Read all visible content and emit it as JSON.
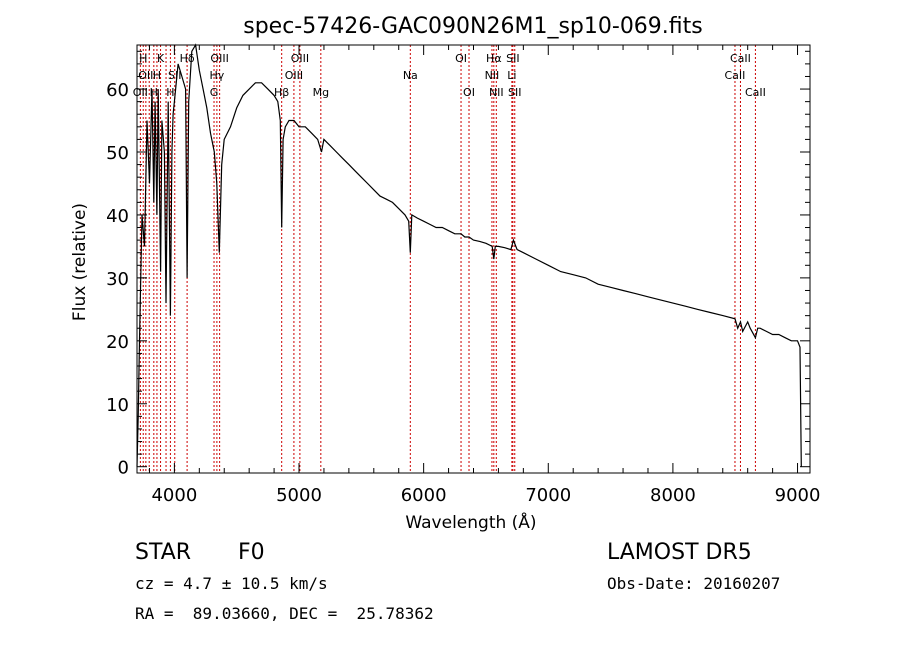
{
  "chart_data": {
    "type": "line",
    "title": "spec-57426-GAC090N26M1_sp10-069.fits",
    "xlabel": "Wavelength (Å)",
    "ylabel": "Flux (relative)",
    "xlim": [
      3700,
      9100
    ],
    "ylim": [
      -1,
      67
    ],
    "xticks": [
      4000,
      5000,
      6000,
      7000,
      8000,
      9000
    ],
    "yticks": [
      0,
      10,
      20,
      30,
      40,
      50,
      60
    ],
    "grid": false,
    "line_color": "#000000",
    "marker_color": "#cc0000",
    "series": [
      {
        "x": [
          3700,
          3710,
          3720,
          3740,
          3760,
          3780,
          3800,
          3820,
          3835,
          3845,
          3860,
          3870,
          3889,
          3900,
          3920,
          3933,
          3950,
          3968,
          3980,
          3990,
          4000,
          4030,
          4060,
          4090,
          4102,
          4115,
          4140,
          4170,
          4200,
          4230,
          4260,
          4290,
          4320,
          4340,
          4360,
          4380,
          4400,
          4450,
          4500,
          4550,
          4600,
          4650,
          4700,
          4750,
          4800,
          4830,
          4850,
          4861,
          4872,
          4890,
          4920,
          4960,
          5000,
          5050,
          5100,
          5150,
          5180,
          5200,
          5250,
          5300,
          5350,
          5400,
          5450,
          5500,
          5550,
          5600,
          5650,
          5700,
          5750,
          5800,
          5850,
          5880,
          5893,
          5905,
          5950,
          6000,
          6050,
          6100,
          6150,
          6200,
          6250,
          6300,
          6330,
          6364,
          6400,
          6450,
          6500,
          6550,
          6563,
          6575,
          6600,
          6650,
          6700,
          6720,
          6750,
          6800,
          6900,
          7000,
          7100,
          7200,
          7300,
          7400,
          7500,
          7600,
          7700,
          7800,
          7900,
          8000,
          8100,
          8200,
          8300,
          8400,
          8498,
          8520,
          8542,
          8560,
          8600,
          8620,
          8662,
          8680,
          8700,
          8750,
          8800,
          8850,
          8900,
          8950,
          9000,
          9020,
          9030
        ],
        "y": [
          0,
          8,
          20,
          40,
          35,
          55,
          45,
          60,
          42,
          58,
          40,
          60,
          31,
          55,
          50,
          26,
          58,
          24,
          50,
          56,
          58,
          64,
          62,
          60,
          30,
          58,
          66,
          67,
          63,
          60,
          57,
          53,
          50,
          45,
          34,
          48,
          52,
          54,
          57,
          59,
          60,
          61,
          61,
          60,
          59,
          58,
          55,
          38,
          52,
          54,
          55,
          55,
          54,
          54,
          53,
          52,
          50,
          52,
          51,
          50,
          49,
          48,
          47,
          46,
          45,
          44,
          43,
          42.5,
          42,
          41,
          40,
          39,
          34,
          40,
          39.5,
          39,
          38.5,
          38,
          38,
          37.5,
          37,
          37,
          36.5,
          36.5,
          36,
          35.8,
          35.5,
          35,
          33,
          35,
          35,
          34.8,
          34.5,
          36,
          34.5,
          34,
          33,
          32,
          31,
          30.5,
          30,
          29,
          28.5,
          28,
          27.5,
          27,
          26.5,
          26,
          25.5,
          25,
          24.5,
          24,
          23.5,
          22,
          23,
          21.5,
          23,
          22,
          20.5,
          22,
          22,
          21.5,
          21,
          21,
          20.5,
          20,
          20,
          19,
          0
        ]
      }
    ],
    "line_markers": [
      {
        "wl": 3727,
        "label": "OII",
        "row": 3
      },
      {
        "wl": 3750,
        "label": "H",
        "row": 1
      },
      {
        "wl": 3771,
        "label": "OII",
        "row": 2
      },
      {
        "wl": 3798,
        "label": "",
        "row": 0
      },
      {
        "wl": 3835,
        "label": "H",
        "row": 3
      },
      {
        "wl": 3860,
        "label": "H",
        "row": 2
      },
      {
        "wl": 3889,
        "label": "K",
        "row": 1
      },
      {
        "wl": 3933,
        "label": "",
        "row": 0
      },
      {
        "wl": 3968,
        "label": "H",
        "row": 3
      },
      {
        "wl": 4003,
        "label": "SII",
        "row": 2
      },
      {
        "wl": 4102,
        "label": "Hδ",
        "row": 1
      },
      {
        "wl": 4318,
        "label": "G",
        "row": 3
      },
      {
        "wl": 4341,
        "label": "Hγ",
        "row": 2
      },
      {
        "wl": 4363,
        "label": "OIII",
        "row": 1
      },
      {
        "wl": 4861,
        "label": "Hβ",
        "row": 3
      },
      {
        "wl": 4959,
        "label": "OIII",
        "row": 2
      },
      {
        "wl": 5007,
        "label": "OIII",
        "row": 1
      },
      {
        "wl": 5175,
        "label": "Mg",
        "row": 3
      },
      {
        "wl": 5893,
        "label": "Na",
        "row": 2
      },
      {
        "wl": 6300,
        "label": "OI",
        "row": 1
      },
      {
        "wl": 6364,
        "label": "OI",
        "row": 3
      },
      {
        "wl": 6548,
        "label": "NII",
        "row": 2
      },
      {
        "wl": 6563,
        "label": "Hα",
        "row": 1
      },
      {
        "wl": 6583,
        "label": "NII",
        "row": 3
      },
      {
        "wl": 6708,
        "label": "Li",
        "row": 2
      },
      {
        "wl": 6716,
        "label": "SII",
        "row": 1
      },
      {
        "wl": 6731,
        "label": "SII",
        "row": 3
      },
      {
        "wl": 8498,
        "label": "CaII",
        "row": 2
      },
      {
        "wl": 8542,
        "label": "CaII",
        "row": 1
      },
      {
        "wl": 8662,
        "label": "CaII",
        "row": 3
      }
    ]
  },
  "info": {
    "class_label": "STAR",
    "subclass": "F0",
    "survey": "LAMOST DR5",
    "redshift": "cz = 4.7 ± 10.5 km/s",
    "obs_date": "Obs-Date: 20160207",
    "coords": "RA =  89.03660, DEC =  25.78362"
  }
}
